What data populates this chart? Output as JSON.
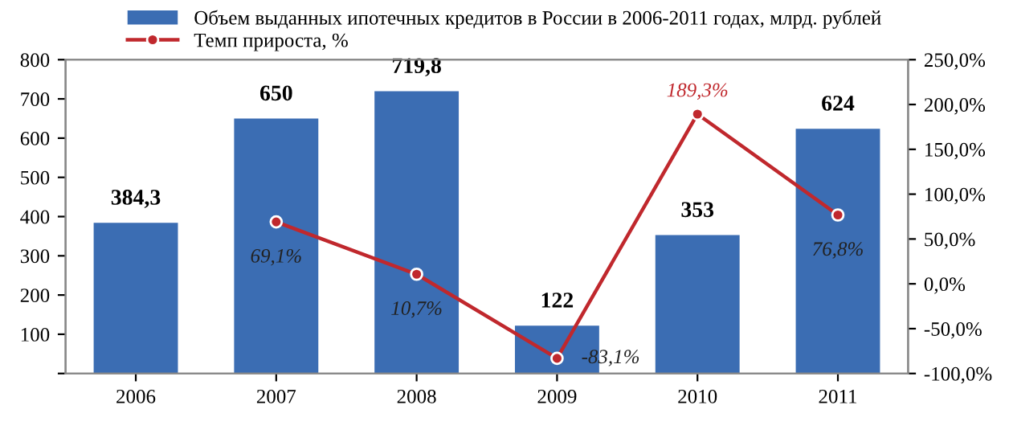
{
  "chart_data": {
    "type": "bar",
    "categories": [
      "2006",
      "2007",
      "2008",
      "2009",
      "2010",
      "2011"
    ],
    "series": [
      {
        "name": "Объем выданных ипотечных кредитов в России в 2006-2011 годах, млрд. рублей",
        "color": "#3b6db3",
        "values": [
          384.3,
          650,
          719.8,
          122,
          353,
          624
        ],
        "value_labels": [
          "384,3",
          "650",
          "719,8",
          "122",
          "353",
          "624"
        ]
      },
      {
        "name": "Темп прироста, %",
        "type": "line",
        "axis": "y2",
        "color": "#c0282d",
        "values": [
          null,
          69.1,
          10.7,
          -83.1,
          189.3,
          76.8
        ],
        "value_labels": [
          null,
          "69,1%",
          "10,7%",
          "-83,1%",
          "189,3%",
          "76,8%"
        ],
        "marker": "circle",
        "line_style": "solid"
      }
    ],
    "ylim": [
      0,
      800
    ],
    "yticks": [
      {
        "value": 0,
        "label": null
      },
      100,
      200,
      300,
      400,
      500,
      600,
      700,
      800
    ],
    "y2lim": [
      -100,
      250
    ],
    "y2ticks": [
      {
        "value": -100,
        "label": "-100,0%"
      },
      {
        "value": -50,
        "label": "-50,0%"
      },
      {
        "value": 0,
        "label": "0,0%"
      },
      {
        "value": 50,
        "label": "50,0%"
      },
      {
        "value": 100,
        "label": "100,0%"
      },
      {
        "value": 150,
        "label": "150,0%"
      },
      {
        "value": 200,
        "label": "200,0%"
      },
      {
        "value": 250,
        "label": "250,0%"
      }
    ],
    "grid": false,
    "legend": "top"
  }
}
